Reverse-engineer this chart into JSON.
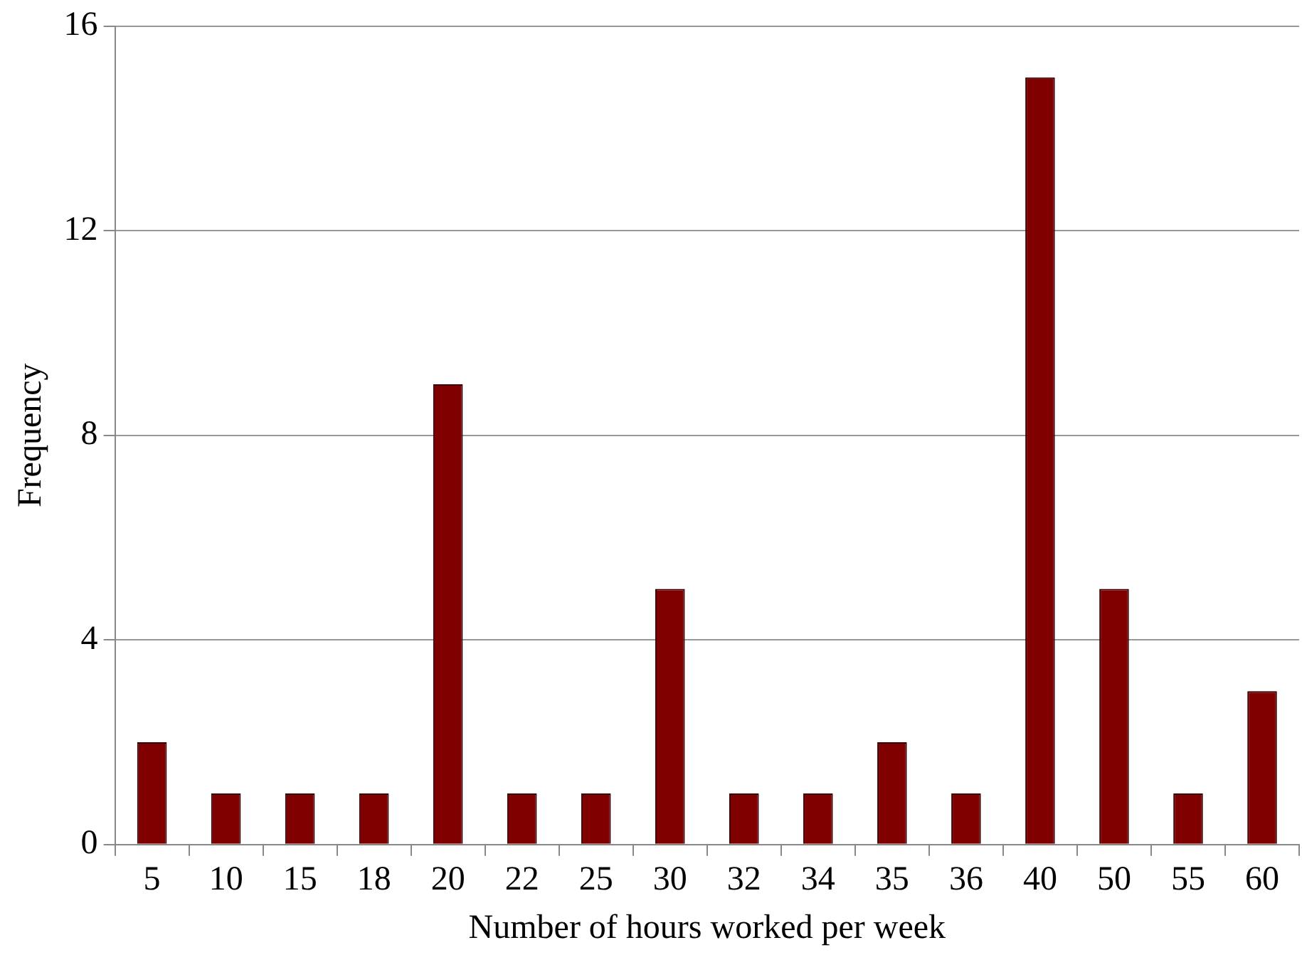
{
  "chart_data": {
    "type": "bar",
    "xlabel": "Number of hours worked per week",
    "ylabel": "Frequency",
    "categories": [
      "5",
      "10",
      "15",
      "18",
      "20",
      "22",
      "25",
      "30",
      "32",
      "34",
      "35",
      "36",
      "40",
      "50",
      "55",
      "60"
    ],
    "values": [
      2,
      1,
      1,
      1,
      9,
      1,
      1,
      5,
      1,
      1,
      2,
      1,
      15,
      5,
      1,
      3
    ],
    "color": "#800000",
    "ylim": [
      0,
      16
    ],
    "yticks": [
      0,
      4,
      8,
      12,
      16
    ],
    "grid": "y",
    "legend": false
  }
}
